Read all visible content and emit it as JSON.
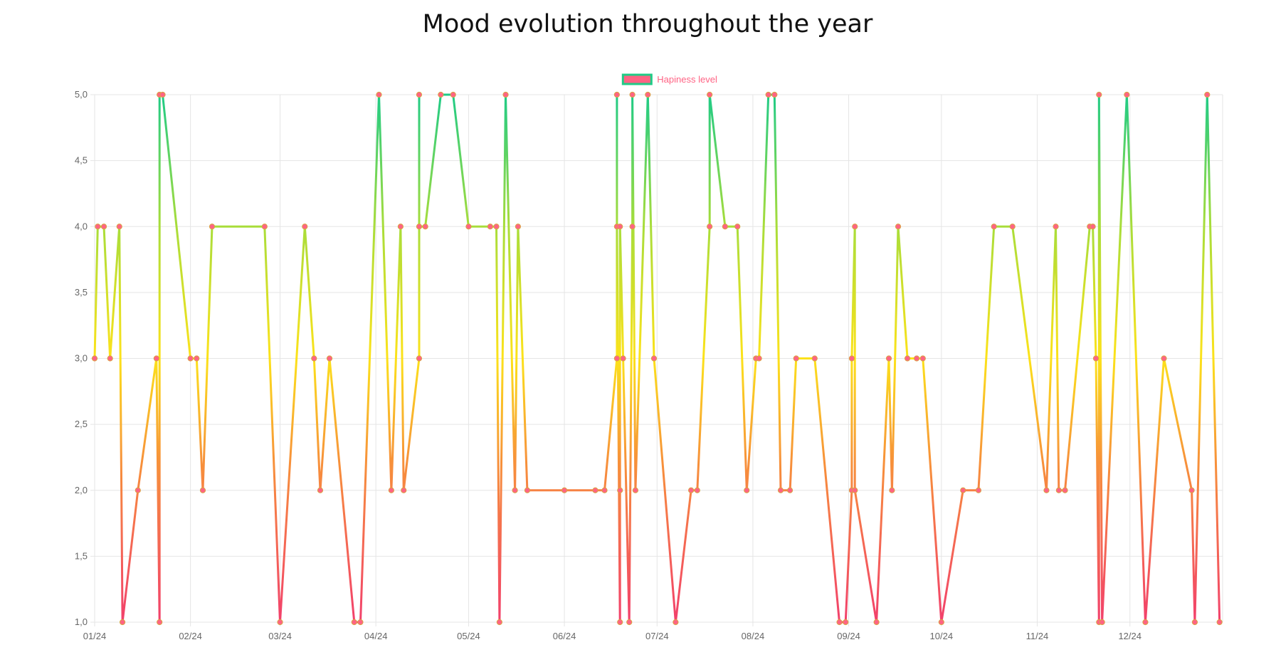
{
  "chart_data": {
    "type": "line",
    "title": "Mood evolution throughout the year",
    "xlabel": "",
    "ylabel": "",
    "ylim": [
      1,
      5
    ],
    "y_ticks": [
      "1,0",
      "1,5",
      "2,0",
      "2,5",
      "3,0",
      "3,5",
      "4,0",
      "4,5",
      "5,0"
    ],
    "x_ticks": [
      {
        "label": "01/24",
        "date": "2024-01-01"
      },
      {
        "label": "02/24",
        "date": "2024-02-01"
      },
      {
        "label": "03/24",
        "date": "2024-03-01"
      },
      {
        "label": "04/24",
        "date": "2024-04-01"
      },
      {
        "label": "05/24",
        "date": "2024-05-01"
      },
      {
        "label": "06/24",
        "date": "2024-06-01"
      },
      {
        "label": "07/24",
        "date": "2024-07-01"
      },
      {
        "label": "08/24",
        "date": "2024-08-01"
      },
      {
        "label": "09/24",
        "date": "2024-09-01"
      },
      {
        "label": "10/24",
        "date": "2024-10-01"
      },
      {
        "label": "11/24",
        "date": "2024-11-01"
      },
      {
        "label": "12/24",
        "date": "2024-12-01"
      }
    ],
    "xlim": [
      "2024-01-01",
      "2024-12-31"
    ],
    "grid": true,
    "legend_position": "top",
    "series": [
      {
        "name": "Hapiness level",
        "points": [
          {
            "x": "2024-01-01",
            "y": 3
          },
          {
            "x": "2024-01-02",
            "y": 4
          },
          {
            "x": "2024-01-04",
            "y": 4
          },
          {
            "x": "2024-01-06",
            "y": 3
          },
          {
            "x": "2024-01-09",
            "y": 4
          },
          {
            "x": "2024-01-10",
            "y": 1
          },
          {
            "x": "2024-01-15",
            "y": 2
          },
          {
            "x": "2024-01-21",
            "y": 3
          },
          {
            "x": "2024-01-22",
            "y": 1
          },
          {
            "x": "2024-01-22",
            "y": 5
          },
          {
            "x": "2024-01-23",
            "y": 5
          },
          {
            "x": "2024-02-01",
            "y": 3
          },
          {
            "x": "2024-02-03",
            "y": 3
          },
          {
            "x": "2024-02-05",
            "y": 2
          },
          {
            "x": "2024-02-08",
            "y": 4
          },
          {
            "x": "2024-02-25",
            "y": 4
          },
          {
            "x": "2024-03-01",
            "y": 1
          },
          {
            "x": "2024-03-09",
            "y": 4
          },
          {
            "x": "2024-03-12",
            "y": 3
          },
          {
            "x": "2024-03-14",
            "y": 2
          },
          {
            "x": "2024-03-17",
            "y": 3
          },
          {
            "x": "2024-03-25",
            "y": 1
          },
          {
            "x": "2024-03-27",
            "y": 1
          },
          {
            "x": "2024-04-02",
            "y": 5
          },
          {
            "x": "2024-04-06",
            "y": 2
          },
          {
            "x": "2024-04-09",
            "y": 4
          },
          {
            "x": "2024-04-10",
            "y": 2
          },
          {
            "x": "2024-04-15",
            "y": 3
          },
          {
            "x": "2024-04-15",
            "y": 5
          },
          {
            "x": "2024-04-15",
            "y": 4
          },
          {
            "x": "2024-04-17",
            "y": 4
          },
          {
            "x": "2024-04-22",
            "y": 5
          },
          {
            "x": "2024-04-26",
            "y": 5
          },
          {
            "x": "2024-05-01",
            "y": 4
          },
          {
            "x": "2024-05-08",
            "y": 4
          },
          {
            "x": "2024-05-10",
            "y": 4
          },
          {
            "x": "2024-05-11",
            "y": 1
          },
          {
            "x": "2024-05-13",
            "y": 5
          },
          {
            "x": "2024-05-16",
            "y": 2
          },
          {
            "x": "2024-05-17",
            "y": 4
          },
          {
            "x": "2024-05-20",
            "y": 2
          },
          {
            "x": "2024-06-01",
            "y": 2
          },
          {
            "x": "2024-06-11",
            "y": 2
          },
          {
            "x": "2024-06-14",
            "y": 2
          },
          {
            "x": "2024-06-18",
            "y": 3
          },
          {
            "x": "2024-06-18",
            "y": 5
          },
          {
            "x": "2024-06-18",
            "y": 4
          },
          {
            "x": "2024-06-19",
            "y": 1
          },
          {
            "x": "2024-06-19",
            "y": 2
          },
          {
            "x": "2024-06-19",
            "y": 4
          },
          {
            "x": "2024-06-20",
            "y": 3
          },
          {
            "x": "2024-06-22",
            "y": 1
          },
          {
            "x": "2024-06-23",
            "y": 4
          },
          {
            "x": "2024-06-23",
            "y": 5
          },
          {
            "x": "2024-06-24",
            "y": 2
          },
          {
            "x": "2024-06-28",
            "y": 5
          },
          {
            "x": "2024-06-30",
            "y": 3
          },
          {
            "x": "2024-07-07",
            "y": 1
          },
          {
            "x": "2024-07-12",
            "y": 2
          },
          {
            "x": "2024-07-14",
            "y": 2
          },
          {
            "x": "2024-07-18",
            "y": 4
          },
          {
            "x": "2024-07-18",
            "y": 5
          },
          {
            "x": "2024-07-23",
            "y": 4
          },
          {
            "x": "2024-07-27",
            "y": 4
          },
          {
            "x": "2024-07-30",
            "y": 2
          },
          {
            "x": "2024-08-02",
            "y": 3
          },
          {
            "x": "2024-08-03",
            "y": 3
          },
          {
            "x": "2024-08-06",
            "y": 5
          },
          {
            "x": "2024-08-08",
            "y": 5
          },
          {
            "x": "2024-08-10",
            "y": 2
          },
          {
            "x": "2024-08-13",
            "y": 2
          },
          {
            "x": "2024-08-15",
            "y": 3
          },
          {
            "x": "2024-08-21",
            "y": 3
          },
          {
            "x": "2024-08-29",
            "y": 1
          },
          {
            "x": "2024-08-31",
            "y": 1
          },
          {
            "x": "2024-09-02",
            "y": 2
          },
          {
            "x": "2024-09-02",
            "y": 3
          },
          {
            "x": "2024-09-03",
            "y": 4
          },
          {
            "x": "2024-09-03",
            "y": 2
          },
          {
            "x": "2024-09-10",
            "y": 1
          },
          {
            "x": "2024-09-14",
            "y": 3
          },
          {
            "x": "2024-09-15",
            "y": 2
          },
          {
            "x": "2024-09-17",
            "y": 4
          },
          {
            "x": "2024-09-20",
            "y": 3
          },
          {
            "x": "2024-09-23",
            "y": 3
          },
          {
            "x": "2024-09-25",
            "y": 3
          },
          {
            "x": "2024-10-01",
            "y": 1
          },
          {
            "x": "2024-10-08",
            "y": 2
          },
          {
            "x": "2024-10-13",
            "y": 2
          },
          {
            "x": "2024-10-18",
            "y": 4
          },
          {
            "x": "2024-10-24",
            "y": 4
          },
          {
            "x": "2024-11-04",
            "y": 2
          },
          {
            "x": "2024-11-07",
            "y": 4
          },
          {
            "x": "2024-11-08",
            "y": 2
          },
          {
            "x": "2024-11-10",
            "y": 2
          },
          {
            "x": "2024-11-18",
            "y": 4
          },
          {
            "x": "2024-11-19",
            "y": 4
          },
          {
            "x": "2024-11-20",
            "y": 3
          },
          {
            "x": "2024-11-21",
            "y": 1
          },
          {
            "x": "2024-11-21",
            "y": 5
          },
          {
            "x": "2024-11-22",
            "y": 1
          },
          {
            "x": "2024-11-30",
            "y": 5
          },
          {
            "x": "2024-12-06",
            "y": 1
          },
          {
            "x": "2024-12-12",
            "y": 3
          },
          {
            "x": "2024-12-21",
            "y": 2
          },
          {
            "x": "2024-12-22",
            "y": 1
          },
          {
            "x": "2024-12-26",
            "y": 5
          },
          {
            "x": "2024-12-30",
            "y": 1
          }
        ]
      }
    ]
  },
  "colors": {
    "low": "#f2416b",
    "mid_low": "#f7913a",
    "mid": "#fce21a",
    "mid_high": "#a8dd3a",
    "high": "#1fcb86",
    "point_fill": "#ff6384",
    "legend_fill": "#ff6384",
    "legend_border": "#1fcb86",
    "legend_text": "#ff6384",
    "grid": "#e5e5e5",
    "tick_text": "#666666",
    "title": "#111111"
  }
}
